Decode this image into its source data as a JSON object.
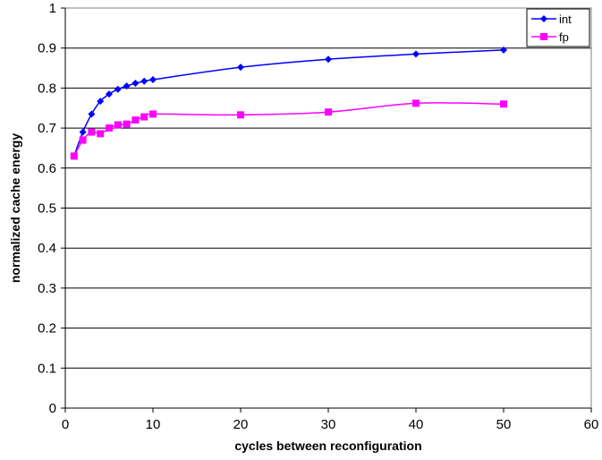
{
  "chart_data": {
    "type": "line",
    "title": "",
    "xlabel": "cycles between reconfiguration",
    "ylabel": "normalized cache energy",
    "xlim": [
      0,
      60
    ],
    "ylim": [
      0,
      1
    ],
    "xticks": [
      0,
      10,
      20,
      30,
      40,
      50,
      60
    ],
    "yticks": [
      0,
      0.1,
      0.2,
      0.3,
      0.4,
      0.5,
      0.6,
      0.7,
      0.8,
      0.9,
      1
    ],
    "grid": "horizontal",
    "legend": "top-right",
    "series": [
      {
        "name": "int",
        "color": "#0000ff",
        "marker": "diamond",
        "x": [
          1,
          2,
          3,
          4,
          5,
          6,
          7,
          8,
          9,
          10,
          20,
          30,
          40,
          50
        ],
        "y": [
          0.63,
          0.69,
          0.735,
          0.767,
          0.785,
          0.797,
          0.805,
          0.812,
          0.817,
          0.821,
          0.852,
          0.872,
          0.885,
          0.895
        ]
      },
      {
        "name": "fp",
        "color": "#ff00ff",
        "marker": "square",
        "x": [
          1,
          2,
          3,
          4,
          5,
          6,
          7,
          8,
          9,
          10,
          20,
          30,
          40,
          50
        ],
        "y": [
          0.63,
          0.67,
          0.69,
          0.686,
          0.7,
          0.708,
          0.71,
          0.72,
          0.728,
          0.735,
          0.733,
          0.74,
          0.762,
          0.76
        ]
      }
    ]
  }
}
